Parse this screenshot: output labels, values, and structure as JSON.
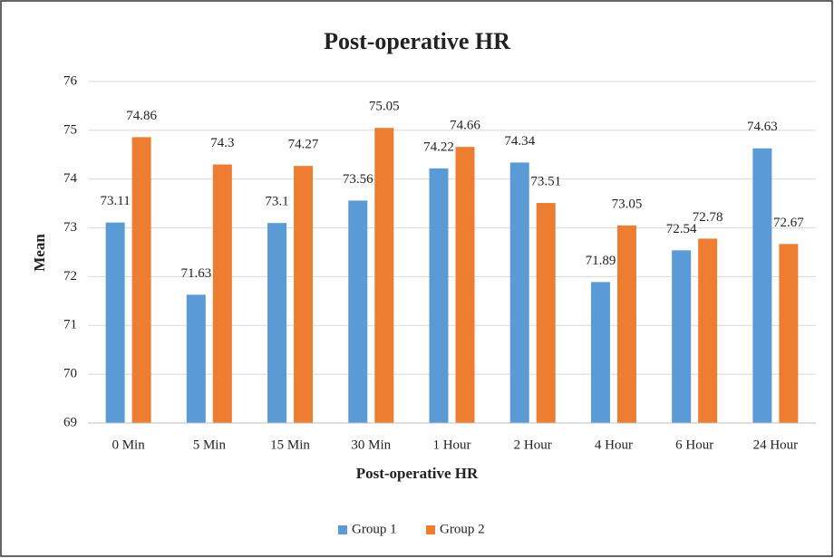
{
  "chart_data": {
    "type": "bar",
    "title": "Post-operative HR",
    "x_label": "Post-operative HR",
    "y_label": "Mean",
    "categories": [
      "0 Min",
      "5 Min",
      "15 Min",
      "30 Min",
      "1 Hour",
      "2 Hour",
      "4 Hour",
      "6 Hour",
      "24 Hour"
    ],
    "series": [
      {
        "name": "Group 1",
        "color": "#5b9bd5",
        "values": [
          73.11,
          71.63,
          73.1,
          73.56,
          74.22,
          74.34,
          71.89,
          72.54,
          74.63
        ]
      },
      {
        "name": "Group 2",
        "color": "#ed7d31",
        "values": [
          74.86,
          74.3,
          74.27,
          75.05,
          74.66,
          73.51,
          73.05,
          72.78,
          72.67
        ]
      }
    ],
    "ylim": [
      69,
      76
    ],
    "yticks": [
      69,
      70,
      71,
      72,
      73,
      74,
      75,
      76
    ],
    "grid": true,
    "legend": "bottom"
  }
}
